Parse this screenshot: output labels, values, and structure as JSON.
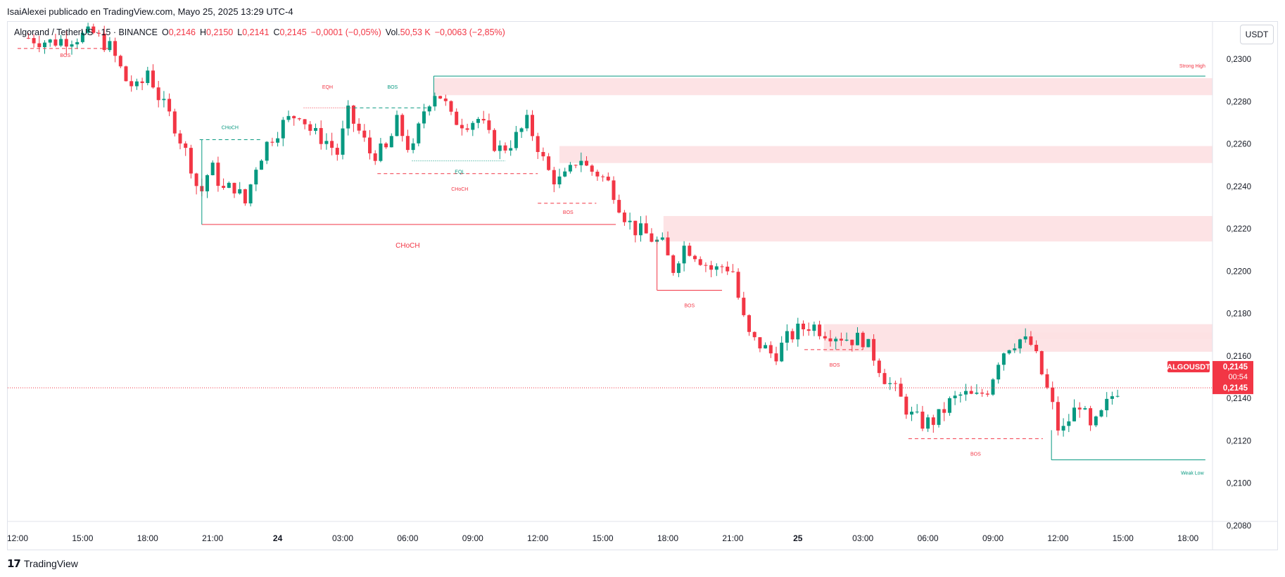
{
  "caption": "IsaiAlexei publicado en TradingView.com, Mayo 25, 2025 13:29 UTC-4",
  "legend": {
    "symbol": "Algorand / TetherUS · 15 · BINANCE",
    "o_label": "O",
    "o_value": "0,2146",
    "h_label": "H",
    "h_value": "0,2150",
    "l_label": "L",
    "l_value": "0,2141",
    "c_label": "C",
    "c_value": "0,2145",
    "change": "−0,0001 (−0,05%)",
    "vol_label": "Vol.",
    "vol_value": "50,53 K",
    "vol_change": "−0,0063 (−2,85%)"
  },
  "currency_button": "USDT",
  "brand": "TradingView",
  "colors": {
    "up": "#089981",
    "down": "#f23645",
    "zone": "#fde0e2"
  },
  "chart_data": {
    "type": "candlestick",
    "symbol": "ALGOUSDT",
    "interval": "15",
    "ylim": [
      0.208,
      0.231
    ],
    "y_ticks": [
      "0,2300",
      "0,2280",
      "0,2260",
      "0,2240",
      "0,2220",
      "0,2200",
      "0,2180",
      "0,2160",
      "0,2140",
      "0,2120",
      "0,2100",
      "0,2080"
    ],
    "y_tick_values": [
      0.23,
      0.228,
      0.226,
      0.224,
      0.222,
      0.22,
      0.218,
      0.216,
      0.214,
      0.212,
      0.21,
      0.208
    ],
    "x_ticks": [
      "12:00",
      "15:00",
      "18:00",
      "21:00",
      "24",
      "03:00",
      "06:00",
      "09:00",
      "12:00",
      "15:00",
      "18:00",
      "21:00",
      "25",
      "03:00",
      "06:00",
      "09:00",
      "12:00",
      "15:00",
      "18:00"
    ],
    "x_tick_hours": [
      0,
      3,
      6,
      9,
      12,
      15,
      18,
      21,
      24,
      27,
      30,
      33,
      36,
      39,
      42,
      45,
      48,
      51,
      54
    ],
    "candle_interval_hours": 0.25,
    "last_price": 0.2145,
    "price_label": {
      "symbol": "ALGOUSDT",
      "value": "0,2145",
      "countdown": "00:54",
      "value2": "0,2145"
    },
    "candle_anchors": [
      [
        0.5,
        0.231
      ],
      [
        1.5,
        0.2308
      ],
      [
        3.5,
        0.2312
      ],
      [
        4.3,
        0.2305
      ],
      [
        5.0,
        0.229
      ],
      [
        5.6,
        0.2285
      ],
      [
        6.0,
        0.2295
      ],
      [
        6.6,
        0.228
      ],
      [
        7.2,
        0.227
      ],
      [
        7.6,
        0.226
      ],
      [
        8.0,
        0.225
      ],
      [
        8.4,
        0.2235
      ],
      [
        8.9,
        0.225
      ],
      [
        9.5,
        0.2238
      ],
      [
        10.0,
        0.224
      ],
      [
        10.5,
        0.2232
      ],
      [
        11.0,
        0.225
      ],
      [
        11.6,
        0.2262
      ],
      [
        12.3,
        0.227
      ],
      [
        13.0,
        0.2275
      ],
      [
        13.6,
        0.2265
      ],
      [
        14.2,
        0.2262
      ],
      [
        14.8,
        0.2255
      ],
      [
        15.2,
        0.2275
      ],
      [
        15.8,
        0.2265
      ],
      [
        16.3,
        0.2255
      ],
      [
        17.0,
        0.2257
      ],
      [
        17.5,
        0.227
      ],
      [
        18.2,
        0.2255
      ],
      [
        18.7,
        0.2275
      ],
      [
        19.2,
        0.2285
      ],
      [
        19.6,
        0.2282
      ],
      [
        20.0,
        0.2272
      ],
      [
        20.6,
        0.227
      ],
      [
        21.3,
        0.2272
      ],
      [
        21.8,
        0.2262
      ],
      [
        22.3,
        0.2257
      ],
      [
        22.9,
        0.2262
      ],
      [
        23.5,
        0.227
      ],
      [
        23.9,
        0.2262
      ],
      [
        24.4,
        0.2248
      ],
      [
        24.9,
        0.2242
      ],
      [
        25.4,
        0.2245
      ],
      [
        25.9,
        0.2255
      ],
      [
        26.3,
        0.2248
      ],
      [
        26.8,
        0.2246
      ],
      [
        27.4,
        0.224
      ],
      [
        27.9,
        0.2228
      ],
      [
        28.4,
        0.222
      ],
      [
        28.9,
        0.2218
      ],
      [
        29.3,
        0.2215
      ],
      [
        29.8,
        0.2212
      ],
      [
        30.2,
        0.22
      ],
      [
        30.7,
        0.2212
      ],
      [
        31.1,
        0.221
      ],
      [
        31.6,
        0.2205
      ],
      [
        32.1,
        0.22
      ],
      [
        32.6,
        0.2203
      ],
      [
        33.0,
        0.22
      ],
      [
        33.4,
        0.218
      ],
      [
        33.8,
        0.2168
      ],
      [
        34.3,
        0.2165
      ],
      [
        34.9,
        0.216
      ],
      [
        35.5,
        0.2168
      ],
      [
        36.0,
        0.2172
      ],
      [
        36.6,
        0.2175
      ],
      [
        37.1,
        0.2172
      ],
      [
        37.8,
        0.217
      ],
      [
        38.4,
        0.2168
      ],
      [
        39.0,
        0.2168
      ],
      [
        39.5,
        0.216
      ],
      [
        40.0,
        0.215
      ],
      [
        40.6,
        0.2142
      ],
      [
        41.2,
        0.2132
      ],
      [
        41.8,
        0.2128
      ],
      [
        42.4,
        0.213
      ],
      [
        43.0,
        0.2138
      ],
      [
        43.6,
        0.2142
      ],
      [
        44.2,
        0.214
      ],
      [
        44.8,
        0.2145
      ],
      [
        45.3,
        0.216
      ],
      [
        45.7,
        0.2165
      ],
      [
        46.2,
        0.2168
      ],
      [
        46.8,
        0.2165
      ],
      [
        47.3,
        0.215
      ],
      [
        47.7,
        0.2138
      ],
      [
        48.1,
        0.2122
      ],
      [
        48.5,
        0.213
      ],
      [
        49.0,
        0.2138
      ],
      [
        49.5,
        0.2125
      ],
      [
        49.9,
        0.213
      ],
      [
        50.4,
        0.214
      ],
      [
        50.8,
        0.2145
      ]
    ],
    "zones": [
      {
        "from_h": 19.2,
        "to_h": 56.5,
        "low": 0.2283,
        "high": 0.2291
      },
      {
        "from_h": 25.0,
        "to_h": 56.5,
        "low": 0.2251,
        "high": 0.2259
      },
      {
        "from_h": 29.8,
        "to_h": 56.5,
        "low": 0.2214,
        "high": 0.2226
      },
      {
        "from_h": 37.2,
        "to_h": 56.5,
        "low": 0.2162,
        "high": 0.2175
      },
      {
        "from_h": 46.0,
        "to_h": 56.5,
        "low": 0.2168,
        "high": 0.2171
      }
    ],
    "structure_lines": [
      {
        "type": "dashed",
        "color": "down",
        "from_h": 0.0,
        "to_h": 4.2,
        "price": 0.2305
      },
      {
        "type": "solid",
        "color": "up",
        "from_h": 19.2,
        "to_h": 54.8,
        "price": 0.2292
      },
      {
        "type": "dotted",
        "color": "down",
        "from_h": 13.2,
        "to_h": 15.5,
        "price": 0.2277
      },
      {
        "type": "dashed",
        "color": "up",
        "from_h": 15.5,
        "to_h": 19.1,
        "price": 0.2277
      },
      {
        "type": "dashed",
        "color": "up",
        "from_h": 8.4,
        "to_h": 11.3,
        "price": 0.2262
      },
      {
        "type": "dotted",
        "color": "up",
        "from_h": 18.2,
        "to_h": 22.5,
        "price": 0.2252
      },
      {
        "type": "dashed",
        "color": "down",
        "from_h": 16.6,
        "to_h": 24.0,
        "price": 0.2246
      },
      {
        "type": "dashed",
        "color": "down",
        "from_h": 24.0,
        "to_h": 26.7,
        "price": 0.2232
      },
      {
        "type": "solid",
        "color": "down",
        "from_h": 8.5,
        "to_h": 27.6,
        "price": 0.2222
      },
      {
        "type": "solid",
        "color": "down",
        "from_h": 29.5,
        "to_h": 32.5,
        "price": 0.2191
      },
      {
        "type": "dashed",
        "color": "down",
        "from_h": 36.3,
        "to_h": 39.0,
        "price": 0.2163
      },
      {
        "type": "dashed",
        "color": "down",
        "from_h": 41.1,
        "to_h": 47.3,
        "price": 0.2121
      },
      {
        "type": "solid",
        "color": "up",
        "from_h": 47.7,
        "to_h": 54.8,
        "price": 0.2111
      }
    ],
    "annotations": [
      {
        "text": "BOS",
        "color": "down",
        "at_h": 2.2,
        "price": 0.2301
      },
      {
        "text": "Strong High",
        "color": "down",
        "at_h": 54.2,
        "price": 0.2296
      },
      {
        "text": "EQH",
        "color": "down",
        "at_h": 14.3,
        "price": 0.2286
      },
      {
        "text": "BOS",
        "color": "up",
        "at_h": 17.3,
        "price": 0.2286
      },
      {
        "text": "CHoCH",
        "color": "up",
        "at_h": 9.8,
        "price": 0.2267
      },
      {
        "text": "EQL",
        "color": "up",
        "at_h": 20.4,
        "price": 0.2246
      },
      {
        "text": "CHoCH",
        "color": "down",
        "at_h": 20.4,
        "price": 0.2238
      },
      {
        "text": "BOS",
        "color": "down",
        "at_h": 25.4,
        "price": 0.2227
      },
      {
        "text": "CHoCH",
        "color": "down",
        "at_h": 18.0,
        "price": 0.2211
      },
      {
        "text": "BOS",
        "color": "down",
        "at_h": 31.0,
        "price": 0.2183
      },
      {
        "text": "BOS",
        "color": "down",
        "at_h": 37.7,
        "price": 0.2155
      },
      {
        "text": "BOS",
        "color": "down",
        "at_h": 44.2,
        "price": 0.2113
      },
      {
        "text": "Weak Low",
        "color": "up",
        "at_h": 54.2,
        "price": 0.2104
      }
    ]
  }
}
